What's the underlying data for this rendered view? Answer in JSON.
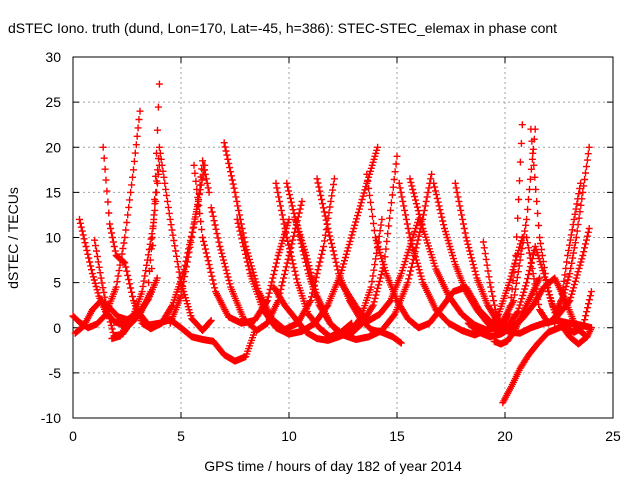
{
  "chart_data": {
    "type": "scatter",
    "title": "dSTEC Iono. truth (dund, Lon=170, Lat=-45, h=386): STEC-STEC_elemax in phase cont",
    "xlabel": "GPS time / hours of day 182 of year 2014",
    "ylabel": "dSTEC  / TECUs",
    "xlim": [
      0,
      25
    ],
    "ylim": [
      -10,
      30
    ],
    "xticks": [
      0,
      5,
      10,
      15,
      20,
      25
    ],
    "yticks": [
      -10,
      -5,
      0,
      5,
      10,
      15,
      20,
      25,
      30
    ],
    "grid": true,
    "marker": "+",
    "color": "#ff0000",
    "series": [
      {
        "x": [
          0.0,
          0.3,
          0.7,
          1.1,
          1.5,
          2.0,
          2.4,
          2.8,
          3.1
        ],
        "y": [
          1.3,
          0.6,
          0.0,
          0.4,
          1.4,
          4.5,
          10.0,
          17.5,
          24.0
        ]
      },
      {
        "x": [
          0.1,
          0.5,
          0.9,
          1.3,
          1.7,
          2.1,
          2.5,
          3.0,
          3.5,
          3.9
        ],
        "y": [
          -0.6,
          0.2,
          2.0,
          3.0,
          2.2,
          1.2,
          0.9,
          1.4,
          3.2,
          5.5
        ]
      },
      {
        "x": [
          0.3,
          0.6,
          0.9,
          1.2,
          1.5,
          1.9,
          2.3,
          2.7,
          3.1,
          3.6,
          4.0
        ],
        "y": [
          12.0,
          9.0,
          6.0,
          3.5,
          1.8,
          0.7,
          0.3,
          0.5,
          1.5,
          4.0,
          27.0
        ]
      },
      {
        "x": [
          1.0,
          1.3,
          1.6,
          1.9,
          2.3,
          2.7,
          3.2,
          3.7,
          4.0
        ],
        "y": [
          9.7,
          5.5,
          1.8,
          -0.9,
          -0.7,
          0.7,
          4.0,
          11.0,
          18.0
        ]
      },
      {
        "x": [
          1.4,
          1.7,
          2.0,
          2.4,
          2.8,
          3.2,
          3.6,
          4.1,
          4.6,
          5.1,
          5.6,
          6.1
        ],
        "y": [
          20.0,
          11.5,
          8.0,
          7.2,
          3.0,
          0.5,
          -0.1,
          0.5,
          2.5,
          6.0,
          11.5,
          18.0
        ]
      },
      {
        "x": [
          1.8,
          2.2,
          2.6,
          3.0,
          3.5,
          4.0,
          4.5,
          5.0,
          5.5,
          6.0,
          6.5,
          7.0,
          7.5,
          8.0,
          8.4
        ],
        "y": [
          -1.2,
          -0.9,
          1.0,
          1.8,
          0.3,
          0.5,
          0.9,
          0.0,
          -1.0,
          -1.3,
          -1.5,
          -3.0,
          -3.7,
          -3.2,
          -0.5
        ]
      },
      {
        "x": [
          3.5,
          4.0,
          4.5,
          5.0,
          5.5,
          6.0,
          6.4
        ],
        "y": [
          5.0,
          20.0,
          12.0,
          5.0,
          1.0,
          -0.3,
          0.8
        ]
      },
      {
        "x": [
          4.5,
          5.0,
          5.5,
          5.8,
          6.0,
          6.3
        ],
        "y": [
          0.5,
          3.5,
          10.0,
          14.0,
          18.5,
          15.0
        ]
      },
      {
        "x": [
          5.6,
          6.0,
          6.6,
          7.2,
          7.8,
          8.4,
          9.0,
          9.5,
          10.0
        ],
        "y": [
          18.0,
          10.0,
          4.0,
          1.2,
          0.5,
          0.8,
          3.0,
          8.0,
          12.0
        ]
      },
      {
        "x": [
          6.4,
          6.8,
          7.3,
          7.9,
          8.5,
          9.0,
          9.5,
          10.0,
          10.6
        ],
        "y": [
          13.3,
          9.0,
          4.5,
          1.0,
          -0.3,
          0.5,
          3.0,
          8.0,
          14.0
        ]
      },
      {
        "x": [
          7.0,
          7.5,
          8.0,
          8.6,
          9.2,
          9.8,
          10.4,
          11.0,
          11.6,
          12.1
        ],
        "y": [
          20.5,
          15.0,
          9.0,
          4.0,
          1.0,
          -0.2,
          0.5,
          3.0,
          9.0,
          16.5
        ]
      },
      {
        "x": [
          7.6,
          8.2,
          8.8,
          9.4,
          10.0,
          10.6,
          11.2,
          11.8,
          12.4,
          13.0,
          13.6,
          14.1
        ],
        "y": [
          12.0,
          6.0,
          2.0,
          0.0,
          -0.7,
          -0.4,
          0.5,
          2.5,
          6.0,
          11.0,
          16.0,
          20.0
        ]
      },
      {
        "x": [
          9.4,
          9.9,
          10.4,
          10.9,
          11.4,
          11.9,
          12.4,
          12.9
        ],
        "y": [
          16.0,
          10.0,
          5.0,
          1.5,
          0.0,
          -1.0,
          -0.5,
          0.5
        ]
      },
      {
        "x": [
          9.9,
          10.4,
          10.9,
          11.4,
          11.9,
          12.4,
          12.9,
          13.4,
          13.9,
          14.4,
          15.0
        ],
        "y": [
          16.0,
          11.0,
          6.0,
          2.5,
          0.5,
          -0.8,
          -0.6,
          0.5,
          2.5,
          7.0,
          19.0
        ]
      },
      {
        "x": [
          9.3,
          9.8,
          10.3,
          10.8,
          11.3,
          11.8,
          12.3,
          12.8,
          13.3,
          13.8,
          14.3
        ],
        "y": [
          4.5,
          2.5,
          1.0,
          -0.5,
          -1.2,
          -1.4,
          -1.0,
          -0.5,
          1.0,
          4.5,
          12.0
        ]
      },
      {
        "x": [
          10.3,
          10.8,
          11.3,
          11.9,
          12.5,
          13.1,
          13.7,
          14.3,
          14.9,
          15.5,
          16.1,
          16.6
        ],
        "y": [
          12.0,
          8.0,
          3.5,
          0.5,
          -0.8,
          -1.3,
          -1.0,
          -0.3,
          1.5,
          5.0,
          11.0,
          17.0
        ]
      },
      {
        "x": [
          11.3,
          11.8,
          12.3,
          12.8,
          13.3,
          13.8,
          14.3,
          14.8,
          15.2
        ],
        "y": [
          16.5,
          11.0,
          6.0,
          3.0,
          1.0,
          -0.2,
          -0.5,
          -1.0,
          -1.7
        ]
      },
      {
        "x": [
          12.4,
          12.8,
          13.2,
          13.7,
          14.2,
          14.7,
          15.2,
          15.6,
          16.0
        ],
        "y": [
          5.0,
          3.5,
          2.0,
          0.8,
          1.5,
          3.0,
          6.0,
          9.0,
          12.0
        ]
      },
      {
        "x": [
          13.6,
          14.0,
          14.5,
          15.0,
          15.5,
          16.0,
          16.5,
          17.0,
          17.6,
          18.2,
          18.8,
          19.4,
          20.0
        ],
        "y": [
          17.0,
          10.0,
          6.0,
          3.0,
          1.0,
          0.0,
          0.5,
          2.0,
          4.0,
          4.5,
          2.0,
          0.5,
          0.0
        ]
      },
      {
        "x": [
          15.1,
          15.6,
          16.2,
          16.8,
          17.4,
          18.0,
          18.6,
          19.2,
          19.7,
          20.2,
          20.8
        ],
        "y": [
          16.0,
          10.0,
          5.0,
          2.0,
          0.5,
          -0.3,
          -0.8,
          -0.2,
          1.5,
          5.0,
          10.0
        ]
      },
      {
        "x": [
          15.6,
          16.2,
          16.8,
          17.4,
          18.0,
          18.6,
          19.2,
          19.8,
          20.4,
          21.0,
          21.4
        ],
        "y": [
          16.5,
          11.0,
          6.5,
          3.5,
          1.5,
          0.3,
          -0.3,
          0.3,
          3.0,
          12.0,
          22.0
        ]
      },
      {
        "x": [
          16.7,
          17.2,
          17.7,
          18.2,
          18.7,
          19.2,
          19.7,
          20.2
        ],
        "y": [
          16.0,
          11.0,
          7.0,
          4.0,
          2.0,
          0.5,
          -0.5,
          0.0
        ]
      },
      {
        "x": [
          17.7,
          18.2,
          18.7,
          19.2,
          19.7,
          20.2,
          20.7,
          21.2,
          21.8,
          22.4,
          23.0
        ],
        "y": [
          16.0,
          10.0,
          5.5,
          2.5,
          0.5,
          -0.5,
          -0.6,
          0.0,
          0.5,
          0.8,
          0.5
        ]
      },
      {
        "x": [
          18.3,
          18.8,
          19.3,
          19.8,
          20.3,
          20.8,
          21.3,
          21.8,
          22.3,
          22.8,
          23.3,
          23.8
        ],
        "y": [
          0.5,
          -0.5,
          -1.0,
          -0.7,
          0.0,
          1.0,
          2.5,
          4.5,
          5.5,
          3.0,
          0.0,
          -1.0
        ]
      },
      {
        "x": [
          19.0,
          19.3,
          19.6,
          19.9,
          20.2,
          20.5,
          20.8
        ],
        "y": [
          9.5,
          5.0,
          1.5,
          0.0,
          1.5,
          8.0,
          22.5
        ]
      },
      {
        "x": [
          19.5,
          19.8,
          20.1,
          20.4,
          20.7,
          21.0,
          21.3,
          21.6
        ],
        "y": [
          -1.5,
          -1.8,
          -1.5,
          -0.5,
          1.0,
          2.5,
          4.0,
          5.5
        ]
      },
      {
        "x": [
          19.9,
          20.3,
          20.7,
          21.1,
          21.5,
          22.0,
          22.5,
          23.0,
          23.5,
          24.0
        ],
        "y": [
          -8.3,
          -6.5,
          -4.5,
          -3.0,
          -1.8,
          -0.5,
          0.0,
          0.5,
          0.3,
          0.0
        ]
      },
      {
        "x": [
          20.2,
          20.6,
          21.0,
          21.4,
          21.8,
          22.2,
          22.6,
          23.0,
          23.4,
          23.8,
          24.0
        ],
        "y": [
          0.3,
          1.8,
          5.0,
          9.0,
          6.0,
          2.5,
          0.3,
          -1.0,
          -1.8,
          -1.0,
          0.0
        ]
      },
      {
        "x": [
          21.0,
          21.3,
          21.6,
          22.0,
          22.5,
          23.0,
          23.3,
          23.6,
          23.9
        ],
        "y": [
          10.0,
          6.0,
          2.0,
          0.5,
          1.5,
          3.0,
          5.5,
          8.0,
          11.0
        ]
      },
      {
        "x": [
          22.4,
          22.7,
          23.0,
          23.3,
          23.6,
          23.9
        ],
        "y": [
          2.0,
          3.5,
          6.0,
          10.0,
          15.0,
          20.0
        ]
      },
      {
        "x": [
          21.2,
          21.6,
          22.0,
          22.4,
          22.8,
          23.2,
          23.6,
          24.0
        ],
        "y": [
          22.0,
          10.0,
          4.0,
          1.0,
          0.0,
          -0.5,
          0.0,
          4.0
        ]
      },
      {
        "x": [
          22.3,
          22.6,
          22.9,
          23.2,
          23.5
        ],
        "y": [
          0.5,
          3.0,
          8.0,
          12.0,
          16.0
        ]
      }
    ]
  }
}
